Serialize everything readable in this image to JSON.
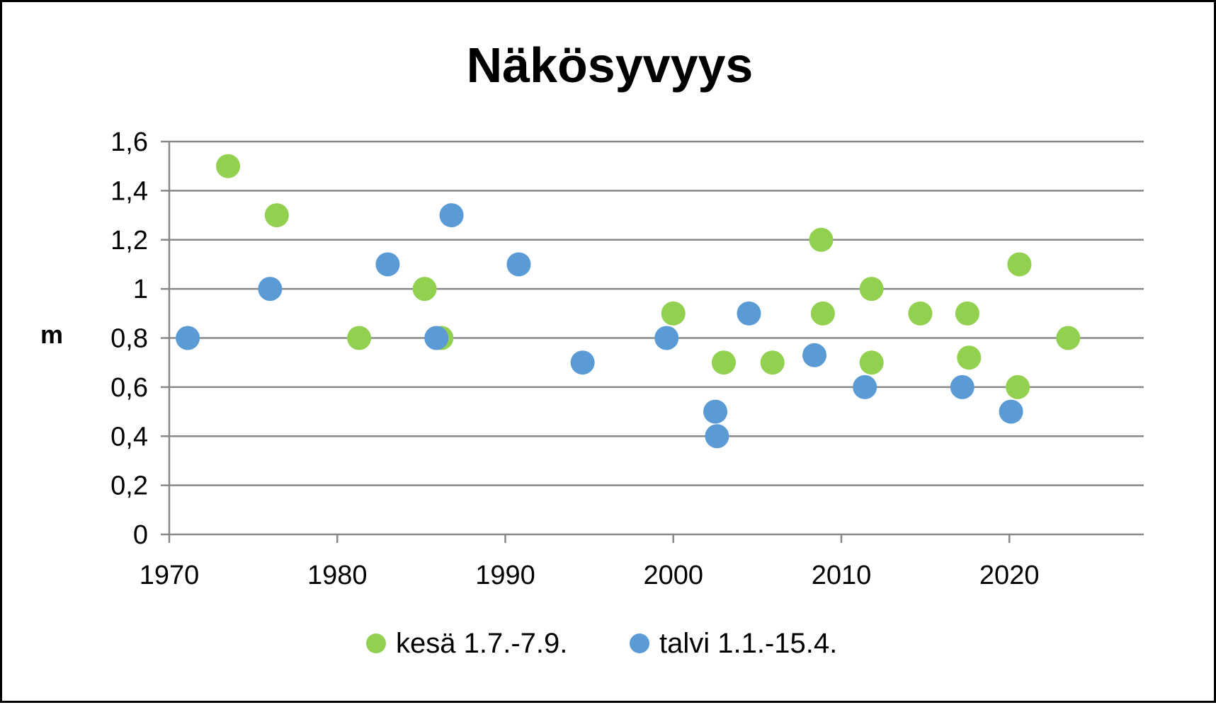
{
  "chart_data": {
    "type": "scatter",
    "title": "Näkösyvyys",
    "xlabel": "",
    "ylabel": "m",
    "xlim": [
      1970,
      2028
    ],
    "ylim": [
      0,
      1.6
    ],
    "xticks": [
      1970,
      1980,
      1990,
      2000,
      2010,
      2020
    ],
    "yticks": [
      0,
      0.2,
      0.4,
      0.6,
      0.8,
      1,
      1.2,
      1.4,
      1.6
    ],
    "ytick_labels": [
      "0",
      "0,2",
      "0,4",
      "0,6",
      "0,8",
      "1",
      "1,2",
      "1,4",
      "1,6"
    ],
    "grid": "horizontal",
    "legend_position": "bottom",
    "series": [
      {
        "name": "kesä 1.7.-7.9.",
        "color": "#92d050",
        "points": [
          {
            "x": 1973.5,
            "y": 1.5
          },
          {
            "x": 1976.4,
            "y": 1.3
          },
          {
            "x": 1981.3,
            "y": 0.8
          },
          {
            "x": 1985.2,
            "y": 1.0
          },
          {
            "x": 1986.2,
            "y": 0.8
          },
          {
            "x": 2000.0,
            "y": 0.9
          },
          {
            "x": 2003.0,
            "y": 0.7
          },
          {
            "x": 2005.9,
            "y": 0.7
          },
          {
            "x": 2008.8,
            "y": 1.2
          },
          {
            "x": 2008.9,
            "y": 0.9
          },
          {
            "x": 2011.8,
            "y": 1.0
          },
          {
            "x": 2011.8,
            "y": 0.7
          },
          {
            "x": 2014.7,
            "y": 0.9
          },
          {
            "x": 2017.5,
            "y": 0.9
          },
          {
            "x": 2017.6,
            "y": 0.72
          },
          {
            "x": 2020.5,
            "y": 0.6
          },
          {
            "x": 2020.6,
            "y": 1.1
          },
          {
            "x": 2023.5,
            "y": 0.8
          }
        ]
      },
      {
        "name": "talvi 1.1.-15.4.",
        "color": "#5b9bd5",
        "points": [
          {
            "x": 1971.1,
            "y": 0.8
          },
          {
            "x": 1976.0,
            "y": 1.0
          },
          {
            "x": 1983.0,
            "y": 1.1
          },
          {
            "x": 1985.9,
            "y": 0.8
          },
          {
            "x": 1986.8,
            "y": 1.3
          },
          {
            "x": 1990.8,
            "y": 1.1
          },
          {
            "x": 1994.6,
            "y": 0.7
          },
          {
            "x": 1999.6,
            "y": 0.8
          },
          {
            "x": 2002.5,
            "y": 0.5
          },
          {
            "x": 2002.6,
            "y": 0.4
          },
          {
            "x": 2004.5,
            "y": 0.9
          },
          {
            "x": 2008.4,
            "y": 0.73
          },
          {
            "x": 2011.4,
            "y": 0.6
          },
          {
            "x": 2017.2,
            "y": 0.6
          },
          {
            "x": 2020.1,
            "y": 0.5
          }
        ]
      }
    ]
  }
}
